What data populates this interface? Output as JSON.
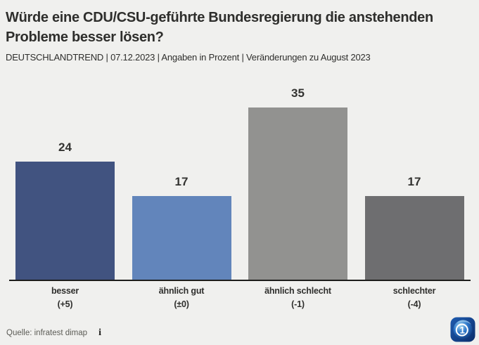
{
  "header": {
    "title": "Würde eine CDU/CSU-geführte Bundesregierung die anstehenden Probleme besser lösen?",
    "subtitle": "DEUTSCHLANDTREND | 07.12.2023 | Angaben in Prozent | Veränderungen zu August 2023"
  },
  "chart_data": {
    "type": "bar",
    "title": "Würde eine CDU/CSU-geführte Bundesregierung die anstehenden Probleme besser lösen?",
    "categories": [
      "besser",
      "ähnlich gut",
      "ähnlich schlecht",
      "schlechter"
    ],
    "values": [
      24,
      17,
      35,
      17
    ],
    "changes": [
      "(+5)",
      "(±0)",
      "(-1)",
      "(-4)"
    ],
    "colors": [
      "#415380",
      "#6285bb",
      "#929290",
      "#6e6e70"
    ],
    "unit": "Prozent",
    "xlabel": "",
    "ylabel": "",
    "ylim": [
      0,
      35
    ],
    "grid": false,
    "legend": false,
    "value_labels": "above bars",
    "change_reference": "August 2023"
  },
  "footer": {
    "source": "Quelle: infratest dimap",
    "info_icon": "i",
    "logo": "ard-das-erste-logo"
  },
  "colors": {
    "background": "#f0f0ee",
    "text": "#2e2e2c",
    "axis": "#1d1d1b",
    "source_text": "#5c5c56",
    "logo_blue": "#11498f"
  }
}
